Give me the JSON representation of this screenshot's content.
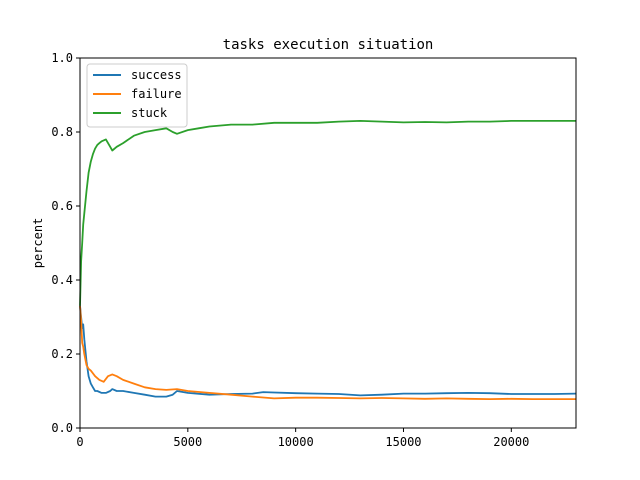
{
  "chart_data": {
    "type": "line",
    "title": "tasks execution situation",
    "xlabel": "",
    "ylabel": "percent",
    "xlim": [
      0,
      23000
    ],
    "ylim": [
      0,
      1.0
    ],
    "xticks": [
      0,
      5000,
      10000,
      15000,
      20000
    ],
    "xtick_labels": [
      "0",
      "5000",
      "10000",
      "15000",
      "20000"
    ],
    "yticks": [
      0.0,
      0.2,
      0.4,
      0.6,
      0.8,
      1.0
    ],
    "ytick_labels": [
      "0.0",
      "0.2",
      "0.4",
      "0.6",
      "0.8",
      "1.0"
    ],
    "grid": false,
    "legend_position": "upper-left",
    "series": [
      {
        "name": "success",
        "color": "#1f77b4",
        "points": [
          [
            0,
            0.33
          ],
          [
            50,
            0.3
          ],
          [
            100,
            0.27
          ],
          [
            150,
            0.28
          ],
          [
            200,
            0.24
          ],
          [
            300,
            0.18
          ],
          [
            400,
            0.14
          ],
          [
            500,
            0.12
          ],
          [
            600,
            0.11
          ],
          [
            700,
            0.1
          ],
          [
            800,
            0.1
          ],
          [
            1000,
            0.095
          ],
          [
            1200,
            0.095
          ],
          [
            1400,
            0.1
          ],
          [
            1500,
            0.105
          ],
          [
            1700,
            0.1
          ],
          [
            2000,
            0.1
          ],
          [
            2500,
            0.095
          ],
          [
            3000,
            0.09
          ],
          [
            3500,
            0.085
          ],
          [
            4000,
            0.085
          ],
          [
            4300,
            0.09
          ],
          [
            4500,
            0.1
          ],
          [
            5000,
            0.095
          ],
          [
            6000,
            0.09
          ],
          [
            7000,
            0.092
          ],
          [
            8000,
            0.093
          ],
          [
            8500,
            0.097
          ],
          [
            9000,
            0.096
          ],
          [
            10000,
            0.094
          ],
          [
            11000,
            0.093
          ],
          [
            12000,
            0.092
          ],
          [
            13000,
            0.088
          ],
          [
            14000,
            0.09
          ],
          [
            15000,
            0.093
          ],
          [
            16000,
            0.093
          ],
          [
            17000,
            0.094
          ],
          [
            18000,
            0.095
          ],
          [
            19000,
            0.094
          ],
          [
            20000,
            0.092
          ],
          [
            21000,
            0.092
          ],
          [
            22000,
            0.092
          ],
          [
            23000,
            0.093
          ]
        ]
      },
      {
        "name": "failure",
        "color": "#ff7f0e",
        "points": [
          [
            0,
            0.33
          ],
          [
            50,
            0.29
          ],
          [
            100,
            0.23
          ],
          [
            150,
            0.22
          ],
          [
            200,
            0.2
          ],
          [
            300,
            0.17
          ],
          [
            400,
            0.16
          ],
          [
            500,
            0.155
          ],
          [
            700,
            0.14
          ],
          [
            900,
            0.13
          ],
          [
            1100,
            0.125
          ],
          [
            1300,
            0.14
          ],
          [
            1500,
            0.145
          ],
          [
            1700,
            0.14
          ],
          [
            2000,
            0.13
          ],
          [
            2500,
            0.12
          ],
          [
            3000,
            0.11
          ],
          [
            3500,
            0.105
          ],
          [
            4000,
            0.103
          ],
          [
            4500,
            0.105
          ],
          [
            5000,
            0.1
          ],
          [
            6000,
            0.095
          ],
          [
            7000,
            0.09
          ],
          [
            8000,
            0.085
          ],
          [
            9000,
            0.08
          ],
          [
            10000,
            0.082
          ],
          [
            11000,
            0.082
          ],
          [
            12000,
            0.081
          ],
          [
            13000,
            0.08
          ],
          [
            14000,
            0.081
          ],
          [
            15000,
            0.08
          ],
          [
            16000,
            0.079
          ],
          [
            17000,
            0.08
          ],
          [
            18000,
            0.079
          ],
          [
            19000,
            0.078
          ],
          [
            20000,
            0.079
          ],
          [
            21000,
            0.078
          ],
          [
            22000,
            0.078
          ],
          [
            23000,
            0.078
          ]
        ]
      },
      {
        "name": "stuck",
        "color": "#2ca02c",
        "points": [
          [
            0,
            0.33
          ],
          [
            50,
            0.45
          ],
          [
            100,
            0.5
          ],
          [
            150,
            0.55
          ],
          [
            200,
            0.58
          ],
          [
            300,
            0.64
          ],
          [
            400,
            0.69
          ],
          [
            500,
            0.72
          ],
          [
            600,
            0.74
          ],
          [
            700,
            0.755
          ],
          [
            800,
            0.765
          ],
          [
            900,
            0.77
          ],
          [
            1000,
            0.775
          ],
          [
            1200,
            0.78
          ],
          [
            1400,
            0.76
          ],
          [
            1500,
            0.75
          ],
          [
            1700,
            0.76
          ],
          [
            2000,
            0.77
          ],
          [
            2500,
            0.79
          ],
          [
            3000,
            0.8
          ],
          [
            3500,
            0.805
          ],
          [
            4000,
            0.81
          ],
          [
            4300,
            0.8
          ],
          [
            4500,
            0.795
          ],
          [
            5000,
            0.805
          ],
          [
            5500,
            0.81
          ],
          [
            6000,
            0.815
          ],
          [
            7000,
            0.82
          ],
          [
            8000,
            0.82
          ],
          [
            9000,
            0.825
          ],
          [
            10000,
            0.825
          ],
          [
            11000,
            0.825
          ],
          [
            12000,
            0.828
          ],
          [
            13000,
            0.83
          ],
          [
            14000,
            0.828
          ],
          [
            15000,
            0.826
          ],
          [
            16000,
            0.827
          ],
          [
            17000,
            0.826
          ],
          [
            18000,
            0.828
          ],
          [
            19000,
            0.828
          ],
          [
            20000,
            0.83
          ],
          [
            21000,
            0.83
          ],
          [
            22000,
            0.83
          ],
          [
            23000,
            0.83
          ]
        ]
      }
    ]
  }
}
